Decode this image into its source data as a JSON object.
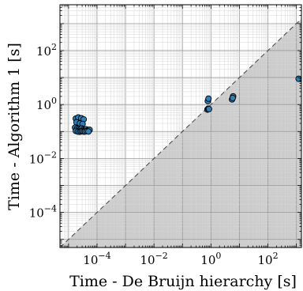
{
  "chart_data": {
    "type": "scatter",
    "title": "",
    "xlabel": "Time - De Bruijn hierarchy [s]",
    "ylabel": "Time - Algorithm 1 [s]",
    "x_scale": "log",
    "y_scale": "log",
    "xlim": [
      5e-06,
      1500
    ],
    "ylim": [
      5e-06,
      5000
    ],
    "x_ticks": [
      {
        "value": 0.0001,
        "base": "10",
        "exp": "−4"
      },
      {
        "value": 0.01,
        "base": "10",
        "exp": "−2"
      },
      {
        "value": 1,
        "base": "10",
        "exp": "0"
      },
      {
        "value": 100,
        "base": "10",
        "exp": "2"
      }
    ],
    "y_ticks": [
      {
        "value": 0.0001,
        "base": "10",
        "exp": "−4"
      },
      {
        "value": 0.01,
        "base": "10",
        "exp": "−2"
      },
      {
        "value": 1,
        "base": "10",
        "exp": "0"
      },
      {
        "value": 100,
        "base": "10",
        "exp": "2"
      }
    ],
    "grid": true,
    "reference_line": "y = x (dashed), region below shaded gray",
    "colors": {
      "marker": "#2e7fb5",
      "marker_edge": "#000000",
      "shade": "#cccccc",
      "diagonal": "#444444"
    },
    "series": [
      {
        "points": [
          [
            1.8e-05,
            0.3
          ],
          [
            2.2e-05,
            0.33
          ],
          [
            2.8e-05,
            0.31
          ],
          [
            3.4e-05,
            0.28
          ],
          [
            1.9e-05,
            0.22
          ],
          [
            2.5e-05,
            0.2
          ],
          [
            3.1e-05,
            0.19
          ],
          [
            1.7e-05,
            0.14
          ],
          [
            2e-05,
            0.13
          ],
          [
            2.3e-05,
            0.125
          ],
          [
            2.6e-05,
            0.12
          ],
          [
            2.9e-05,
            0.13
          ],
          [
            3.3e-05,
            0.12
          ],
          [
            3.7e-05,
            0.115
          ],
          [
            4.2e-05,
            0.12
          ],
          [
            4.8e-05,
            0.11
          ],
          [
            5.5e-05,
            0.115
          ],
          [
            1.8e-05,
            0.105
          ],
          [
            2.1e-05,
            0.1
          ],
          [
            2.4e-05,
            0.098
          ],
          [
            2.7e-05,
            0.1
          ],
          [
            3e-05,
            0.102
          ],
          [
            3.4e-05,
            0.099
          ],
          [
            3.8e-05,
            0.1
          ],
          [
            4.4e-05,
            0.102
          ],
          [
            5e-05,
            0.1
          ],
          [
            0.75,
            0.65
          ],
          [
            0.8,
            0.7
          ],
          [
            0.85,
            0.68
          ],
          [
            0.78,
            1.35
          ],
          [
            0.82,
            1.65
          ],
          [
            5.5,
            1.55
          ],
          [
            6.0,
            2.0
          ],
          [
            5.8,
            1.75
          ],
          [
            1200,
            9.0
          ]
        ]
      }
    ]
  }
}
